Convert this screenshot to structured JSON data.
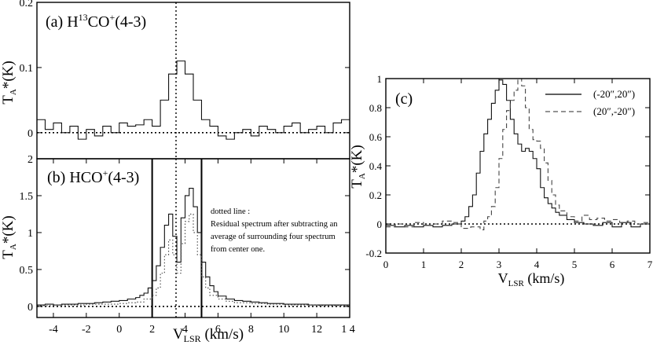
{
  "chart_data": [
    {
      "id": "a",
      "type": "line",
      "step": true,
      "panel_label": "(a)",
      "molecule": "H",
      "molecule_sup": "13",
      "molecule_mid": "CO",
      "molecule_sup2": "+",
      "transition": "(4-3)",
      "xlim": [
        -5,
        14
      ],
      "ylim": [
        -0.04,
        0.2
      ],
      "ylabel": "T",
      "ylabel_sub": "A",
      "ylabel_rest": "*(K)",
      "yticks": [
        {
          "v": 0,
          "label": "0"
        },
        {
          "v": 0.1,
          "label": "0.1"
        },
        {
          "v": 0.2,
          "label": "0.2"
        }
      ],
      "hline_y": 0,
      "vline_x": 3.45,
      "series": [
        {
          "name": "H13CO+(4-3)",
          "dash": "none",
          "x": [
            -5.0,
            -4.5,
            -4.0,
            -3.5,
            -3.0,
            -2.5,
            -2.0,
            -1.5,
            -1.0,
            -0.5,
            0.0,
            0.5,
            1.0,
            1.5,
            2.0,
            2.5,
            3.0,
            3.5,
            4.0,
            4.5,
            5.0,
            5.5,
            6.0,
            6.5,
            7.0,
            7.5,
            8.0,
            8.5,
            9.0,
            9.5,
            10.0,
            10.5,
            11.0,
            11.5,
            12.0,
            12.5,
            13.0,
            13.5
          ],
          "y": [
            0.02,
            0.005,
            0.015,
            0.0,
            0.01,
            -0.01,
            0.005,
            -0.005,
            0.01,
            0.0,
            0.015,
            0.01,
            0.012,
            0.02,
            0.01,
            0.05,
            0.09,
            0.11,
            0.09,
            0.05,
            0.02,
            0.01,
            -0.005,
            -0.01,
            0.0,
            0.005,
            -0.005,
            0.01,
            0.005,
            0.0,
            0.01,
            0.015,
            0.0,
            0.005,
            0.01,
            0.0,
            0.015,
            0.02
          ]
        }
      ]
    },
    {
      "id": "b",
      "type": "line",
      "step": true,
      "panel_label": "(b)",
      "molecule": "HCO",
      "molecule_sup": "+",
      "transition": "(4-3)",
      "xlim": [
        -5,
        14
      ],
      "ylim": [
        -0.15,
        2
      ],
      "xlabel": "V",
      "xlabel_sub": "LSR",
      "xlabel_rest": " (km/s)",
      "ylabel": "T",
      "ylabel_sub": "A",
      "ylabel_rest": "*(K)",
      "xticks": [
        {
          "v": -4,
          "label": "-4"
        },
        {
          "v": -2,
          "label": "-2"
        },
        {
          "v": 0,
          "label": "0"
        },
        {
          "v": 2,
          "label": "2"
        },
        {
          "v": 4,
          "label": "4"
        },
        {
          "v": 6,
          "label": "6"
        },
        {
          "v": 8,
          "label": "8"
        },
        {
          "v": 10,
          "label": "10"
        },
        {
          "v": 12,
          "label": "12"
        },
        {
          "v": 14,
          "label": "1 4"
        }
      ],
      "yticks": [
        {
          "v": 0,
          "label": "0"
        },
        {
          "v": 0.5,
          "label": "0.5"
        },
        {
          "v": 1,
          "label": "1"
        },
        {
          "v": 1.5,
          "label": "1.5"
        },
        {
          "v": 2,
          "label": "2"
        }
      ],
      "hline_y": 0,
      "vline_x": 3.45,
      "range_lines_x": [
        2.0,
        5.0
      ],
      "annotation": [
        "dotted line :",
        "Residual spectrum after subtracting an",
        "average of surrounding four spectrum",
        "from center one."
      ],
      "series": [
        {
          "name": "HCO+(4-3)",
          "dash": "none",
          "x": [
            -5.0,
            -4.5,
            -4.0,
            -3.5,
            -3.0,
            -2.5,
            -2.0,
            -1.5,
            -1.0,
            -0.5,
            0.0,
            0.5,
            1.0,
            1.25,
            1.5,
            1.75,
            2.0,
            2.25,
            2.5,
            2.75,
            3.0,
            3.25,
            3.5,
            3.75,
            4.0,
            4.25,
            4.5,
            4.75,
            5.0,
            5.25,
            5.5,
            5.75,
            6.0,
            6.5,
            7.0,
            7.5,
            8.0,
            8.5,
            9.0,
            9.5,
            10.0,
            10.5,
            11.0,
            11.5,
            12.0,
            12.5,
            13.0,
            13.5
          ],
          "y": [
            0.02,
            0.03,
            0.02,
            0.03,
            0.03,
            0.04,
            0.04,
            0.05,
            0.06,
            0.07,
            0.08,
            0.1,
            0.12,
            0.15,
            0.18,
            0.25,
            0.35,
            0.55,
            0.8,
            1.1,
            1.25,
            0.95,
            0.6,
            1.2,
            1.5,
            1.6,
            1.35,
            1.0,
            0.6,
            0.4,
            0.28,
            0.2,
            0.14,
            0.1,
            0.08,
            0.07,
            0.06,
            0.05,
            0.04,
            0.04,
            0.03,
            0.03,
            0.03,
            0.02,
            0.02,
            0.02,
            0.02,
            0.02
          ]
        },
        {
          "name": "Residual",
          "dash": "dotted",
          "x": [
            -5.0,
            -4.0,
            -3.0,
            -2.0,
            -1.0,
            0.0,
            0.5,
            1.0,
            1.5,
            2.0,
            2.25,
            2.5,
            2.75,
            3.0,
            3.25,
            3.5,
            3.75,
            4.0,
            4.25,
            4.5,
            4.75,
            5.0,
            5.25,
            5.5,
            6.0,
            6.5,
            7.0,
            8.0,
            9.0,
            10.0,
            11.0,
            12.0,
            13.0
          ],
          "y": [
            0.01,
            0.02,
            0.02,
            0.03,
            0.03,
            0.04,
            0.05,
            0.06,
            0.1,
            0.15,
            0.25,
            0.45,
            0.7,
            0.9,
            0.7,
            0.45,
            0.85,
            1.15,
            1.25,
            1.0,
            0.7,
            0.4,
            0.25,
            0.15,
            0.1,
            0.07,
            0.05,
            0.04,
            0.03,
            0.02,
            0.02,
            0.01,
            0.01
          ]
        }
      ]
    },
    {
      "id": "c",
      "type": "line",
      "step": true,
      "panel_label": "(c)",
      "xlim": [
        0,
        7
      ],
      "ylim": [
        -0.2,
        1
      ],
      "xlabel": "V",
      "xlabel_sub": "LSR",
      "xlabel_rest": " (km/s)",
      "ylabel": "T",
      "ylabel_sub": "A",
      "ylabel_rest": "*(K)",
      "xticks": [
        {
          "v": 0,
          "label": "0"
        },
        {
          "v": 1,
          "label": "1"
        },
        {
          "v": 2,
          "label": "2"
        },
        {
          "v": 3,
          "label": "3"
        },
        {
          "v": 4,
          "label": "4"
        },
        {
          "v": 5,
          "label": "5"
        },
        {
          "v": 6,
          "label": "6"
        },
        {
          "v": 7,
          "label": "7"
        }
      ],
      "yticks": [
        {
          "v": -0.2,
          "label": "-0.2"
        },
        {
          "v": 0,
          "label": "0"
        },
        {
          "v": 0.2,
          "label": "0.2"
        },
        {
          "v": 0.4,
          "label": "0.4"
        },
        {
          "v": 0.6,
          "label": "0.6"
        },
        {
          "v": 0.8,
          "label": "0.8"
        },
        {
          "v": 1,
          "label": "1"
        }
      ],
      "hline_y": 0,
      "legend_position": "top-right",
      "series": [
        {
          "name": "(-20″,20″)",
          "dash": "solid",
          "x": [
            0.0,
            0.25,
            0.5,
            0.75,
            1.0,
            1.25,
            1.5,
            1.75,
            2.0,
            2.1,
            2.2,
            2.3,
            2.4,
            2.5,
            2.6,
            2.7,
            2.8,
            2.9,
            3.0,
            3.1,
            3.2,
            3.3,
            3.4,
            3.5,
            3.6,
            3.7,
            3.8,
            3.9,
            4.0,
            4.1,
            4.2,
            4.3,
            4.4,
            4.5,
            4.6,
            4.8,
            5.0,
            5.25,
            5.5,
            5.75,
            6.0,
            6.25,
            6.5,
            6.75
          ],
          "y": [
            -0.01,
            -0.02,
            -0.01,
            -0.02,
            -0.01,
            -0.02,
            -0.01,
            0.0,
            0.02,
            0.05,
            0.12,
            0.2,
            0.35,
            0.5,
            0.62,
            0.72,
            0.83,
            0.92,
            0.99,
            0.96,
            0.85,
            0.72,
            0.62,
            0.55,
            0.5,
            0.52,
            0.5,
            0.45,
            0.38,
            0.25,
            0.18,
            0.14,
            0.11,
            0.08,
            0.06,
            0.03,
            0.01,
            0.0,
            -0.01,
            0.01,
            -0.02,
            0.01,
            -0.02,
            0.0
          ]
        },
        {
          "name": "(20″,-20″)",
          "dash": "dashed",
          "x": [
            0.0,
            0.25,
            0.5,
            0.75,
            1.0,
            1.25,
            1.5,
            1.75,
            2.0,
            2.25,
            2.5,
            2.6,
            2.7,
            2.8,
            2.9,
            3.0,
            3.1,
            3.2,
            3.3,
            3.4,
            3.5,
            3.6,
            3.7,
            3.8,
            3.9,
            4.0,
            4.1,
            4.2,
            4.3,
            4.4,
            4.5,
            4.6,
            4.8,
            5.0,
            5.2,
            5.4,
            5.6,
            5.8,
            6.0,
            6.2,
            6.4,
            6.6,
            6.8
          ],
          "y": [
            -0.02,
            0.0,
            -0.02,
            0.01,
            -0.01,
            0.0,
            0.02,
            0.01,
            -0.03,
            -0.02,
            -0.04,
            0.02,
            0.05,
            0.12,
            0.25,
            0.45,
            0.65,
            0.78,
            0.85,
            0.92,
            1.0,
            0.95,
            0.8,
            0.65,
            0.58,
            0.57,
            0.52,
            0.42,
            0.3,
            0.2,
            0.13,
            0.09,
            0.05,
            0.02,
            0.06,
            0.03,
            0.04,
            0.02,
            0.03,
            0.01,
            0.02,
            0.0,
            0.01
          ]
        }
      ]
    }
  ]
}
